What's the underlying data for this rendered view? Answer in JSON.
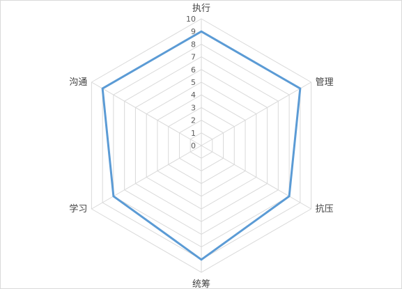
{
  "chart_data": {
    "type": "radar",
    "categories": [
      "执行",
      "管理",
      "抗压",
      "统筹",
      "学习",
      "沟通"
    ],
    "series": [
      {
        "values": [
          9,
          9,
          8,
          9,
          8,
          9
        ]
      }
    ],
    "rlim": [
      0,
      10
    ],
    "ticks": [
      "0",
      "1",
      "2",
      "3",
      "4",
      "5",
      "6",
      "7",
      "8",
      "9",
      "10"
    ],
    "grid": true,
    "legend": "none",
    "colors": {
      "series": "#5b9bd5",
      "grid": "#d9d9d9",
      "text": "#404040"
    }
  }
}
